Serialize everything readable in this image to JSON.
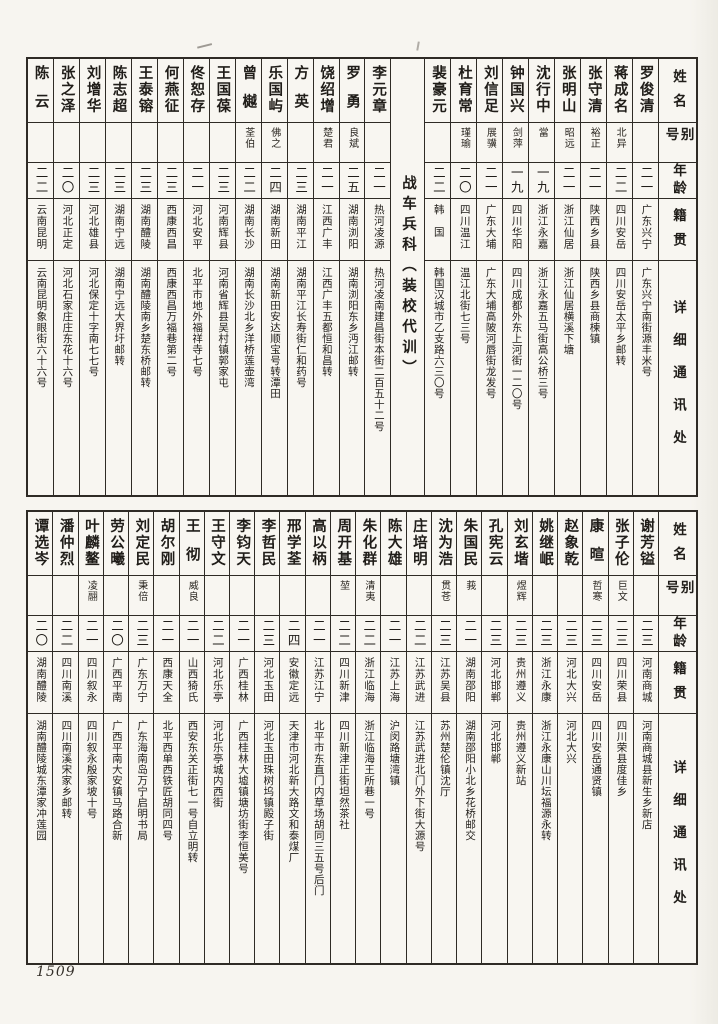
{
  "page": {
    "number": "1509"
  },
  "column_headers": {
    "name": "姓名",
    "alias": "别号",
    "age": "年龄",
    "native_place": "籍贯",
    "address": "详细通讯处"
  },
  "section_divider_label": "战车兵科（装校代训）",
  "tables": [
    {
      "divider_before_index": 9,
      "people": [
        {
          "name": "罗俊清",
          "alias": "",
          "age": "二一",
          "native_place": "广东兴宁",
          "address": "广东兴宁南街源丰米号"
        },
        {
          "name": "蒋成名",
          "alias": "北异",
          "age": "二二",
          "native_place": "四川安岳",
          "address": "四川安岳太平乡邮转"
        },
        {
          "name": "张守清",
          "alias": "裕正",
          "age": "二一",
          "native_place": "陕西乡县",
          "address": "陕西乡县商楝镇"
        },
        {
          "name": "张明山",
          "alias": "昭远",
          "age": "二一",
          "native_place": "浙江仙居",
          "address": "浙江仙居横溪下塘"
        },
        {
          "name": "沈行中",
          "alias": "當",
          "age": "一九",
          "native_place": "浙江永嘉",
          "address": "浙江永嘉五马街高公桥三号"
        },
        {
          "name": "钟国兴",
          "alias": "剑萍",
          "age": "一九",
          "native_place": "四川华阳",
          "address": "四川成都外东上河街一二〇号"
        },
        {
          "name": "刘信足",
          "alias": "展骥",
          "age": "二一",
          "native_place": "广东大埔",
          "address": "广东大埔高陂河唇街龙发号"
        },
        {
          "name": "杜育常",
          "alias": "瑾瑜",
          "age": "二〇",
          "native_place": "四川温江",
          "address": "温江北街七三号"
        },
        {
          "name": "裴豪元",
          "alias": "",
          "age": "二二",
          "native_place": "韩国",
          "address": "韩国汉城市乙支路六三〇号"
        },
        {
          "name": "李元章",
          "alias": "",
          "age": "二一",
          "native_place": "热河凌源",
          "address": "热河凌南建昌街本街二百五十二号"
        },
        {
          "name": "罗勇",
          "alias": "良斌",
          "age": "二五",
          "native_place": "湖南浏阳",
          "address": "湖南浏阳东乡沔江邮转"
        },
        {
          "name": "饶绍增",
          "alias": "楚君",
          "age": "二一",
          "native_place": "江西广丰",
          "address": "江西广丰五都恒和昌转"
        },
        {
          "name": "方英",
          "alias": "",
          "age": "二三",
          "native_place": "湖南平江",
          "address": "湖南平江长寿街仁和药号"
        },
        {
          "name": "乐国屿",
          "alias": "佛之",
          "age": "二四",
          "native_place": "湖南新田",
          "address": "湖南新田安达顺宝号转潭田"
        },
        {
          "name": "曾樾",
          "alias": "荃伯",
          "age": "二二",
          "native_place": "湖南长沙",
          "address": "湖南长沙北乡洋桥莲壶湾"
        },
        {
          "name": "王国葆",
          "alias": "",
          "age": "二三",
          "native_place": "河南辉县",
          "address": "河南省辉县吴村镇郭家屯"
        },
        {
          "name": "佟恕存",
          "alias": "",
          "age": "二一",
          "native_place": "河北安平",
          "address": "北平市地外福祥寺七号"
        },
        {
          "name": "何燕征",
          "alias": "",
          "age": "二三",
          "native_place": "西康西昌",
          "address": "西康西昌万福巷第二号"
        },
        {
          "name": "王泰镕",
          "alias": "",
          "age": "二三",
          "native_place": "湖南醴陵",
          "address": "湖南醴陵南乡楚东桥邮转"
        },
        {
          "name": "陈志超",
          "alias": "",
          "age": "二三",
          "native_place": "湖南宁远",
          "address": "湖南宁远大界圩邮转"
        },
        {
          "name": "刘增华",
          "alias": "",
          "age": "二三",
          "native_place": "河北雄县",
          "address": "河北保定十字南七七号"
        },
        {
          "name": "张之泽",
          "alias": "",
          "age": "二〇",
          "native_place": "河北正定",
          "address": "河北石家庄庄东花十六号"
        },
        {
          "name": "陈云",
          "alias": "",
          "age": "二二",
          "native_place": "云南昆明",
          "address": "云南昆明象眼街六十六号"
        }
      ]
    },
    {
      "people": [
        {
          "name": "谢芳镒",
          "alias": "",
          "age": "二三",
          "native_place": "河南商城",
          "address": "河南商城县新生乡新店"
        },
        {
          "name": "张子伦",
          "alias": "巨文",
          "age": "二三",
          "native_place": "四川荣县",
          "address": "四川荣县度佳乡"
        },
        {
          "name": "康暄",
          "alias": "哲寒",
          "age": "二三",
          "native_place": "四川安岳",
          "address": "四川安岳通贤镇"
        },
        {
          "name": "赵象乾",
          "alias": "",
          "age": "二三",
          "native_place": "河北大兴",
          "address": "河北大兴"
        },
        {
          "name": "姚继岷",
          "alias": "",
          "age": "二三",
          "native_place": "浙江永康",
          "address": "浙江永康山川坛福源永转"
        },
        {
          "name": "刘玄堦",
          "alias": "煜辉",
          "age": "二三",
          "native_place": "贵州遵义",
          "address": "贵州遵义新站"
        },
        {
          "name": "孔宪云",
          "alias": "",
          "age": "二三",
          "native_place": "河北邯郸",
          "address": "河北邯郸"
        },
        {
          "name": "朱国民",
          "alias": "莪",
          "age": "二一",
          "native_place": "湖南邵阳",
          "address": "湖南邵阳小北乡花桥邮交"
        },
        {
          "name": "沈为浩",
          "alias": "贯苍",
          "age": "二三",
          "native_place": "江苏吴县",
          "address": "苏州楚伦镇沈厅"
        },
        {
          "name": "庄培明",
          "alias": "",
          "age": "二二",
          "native_place": "江苏武进",
          "address": "江苏武进北门外下街大源号"
        },
        {
          "name": "陈大雄",
          "alias": "",
          "age": "二一",
          "native_place": "江苏上海",
          "address": "沪闵路塘湾镇"
        },
        {
          "name": "朱化群",
          "alias": "清夷",
          "age": "二二",
          "native_place": "浙江临海",
          "address": "浙江临海王所巷一号"
        },
        {
          "name": "周开基",
          "alias": "堃",
          "age": "二二",
          "native_place": "四川新津",
          "address": "四川新津正街坦然茶社"
        },
        {
          "name": "高以柄",
          "alias": "",
          "age": "二一",
          "native_place": "江苏江宁",
          "address": "北平市东直门内草场胡同三五号后门"
        },
        {
          "name": "邢学荃",
          "alias": "",
          "age": "二四",
          "native_place": "安徽定远",
          "address": "天津市河北新大路文和泰煤厂"
        },
        {
          "name": "李哲民",
          "alias": "",
          "age": "二三",
          "native_place": "河北玉田",
          "address": "河北玉田珠树坞镇殿子街"
        },
        {
          "name": "李钧天",
          "alias": "",
          "age": "二一",
          "native_place": "广西桂林",
          "address": "广西桂林大墟镇塘坊街李恒美号"
        },
        {
          "name": "王守文",
          "alias": "",
          "age": "二二",
          "native_place": "河北乐亭",
          "address": "河北乐亭城内西街"
        },
        {
          "name": "王彻",
          "alias": "威良",
          "age": "二一",
          "native_place": "山西猗氏",
          "address": "西安东关正街七一号自立明转"
        },
        {
          "name": "胡尔刚",
          "alias": "",
          "age": "二一",
          "native_place": "西康天全",
          "address": "北平西单西铁匠胡同四号"
        },
        {
          "name": "刘定民",
          "alias": "秉倍",
          "age": "二三",
          "native_place": "广东万宁",
          "address": "广东海南岛万宁启明书局"
        },
        {
          "name": "劳公曦",
          "alias": "",
          "age": "二〇",
          "native_place": "广西平南",
          "address": "广西平南大安镇马路合新"
        },
        {
          "name": "叶麟鳌",
          "alias": "凌翮",
          "age": "二一",
          "native_place": "四川叙永",
          "address": "四川叙永殷家坡十号"
        },
        {
          "name": "潘仲烈",
          "alias": "",
          "age": "二二",
          "native_place": "四川南溪",
          "address": "四川南溪宋家乡邮转"
        },
        {
          "name": "谭选岑",
          "alias": "",
          "age": "二〇",
          "native_place": "湖南醴陵",
          "address": "湖南醴陵城东潭家冲莲园"
        }
      ]
    }
  ]
}
